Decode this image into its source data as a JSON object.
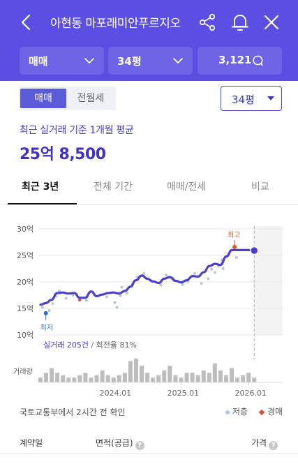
{
  "header": {
    "title": "아현동 마포래미안푸르지오",
    "filters": [
      {
        "label": "매매"
      },
      {
        "label": "34평"
      },
      {
        "label": "3,121"
      }
    ]
  },
  "controls": {
    "segment": [
      "매매",
      "전월세"
    ],
    "size_select": "34평"
  },
  "summary": {
    "label": "최근 실거래 기준 1개월 평균",
    "price": "25억 8,500"
  },
  "tabs": [
    "최근 3년",
    "전체 기간",
    "매매/전세",
    "비교"
  ],
  "chart_data": {
    "type": "line",
    "y_ticks": [
      "30억",
      "25억",
      "20억",
      "15억",
      "10억"
    ],
    "ylim": [
      10,
      30
    ],
    "x_ticks": [
      "2024.01",
      "2025.01",
      "2026.01"
    ],
    "x_tick_values": [
      2024.0,
      2025.0,
      2026.0
    ],
    "x_range": [
      2022.9,
      2026.5
    ],
    "series": [
      {
        "values": [
          [
            2022.92,
            15.7
          ],
          [
            2023.0,
            16.0
          ],
          [
            2023.08,
            16.6
          ],
          [
            2023.17,
            17.9
          ],
          [
            2023.25,
            18.0
          ],
          [
            2023.33,
            17.8
          ],
          [
            2023.42,
            17.9
          ],
          [
            2023.5,
            17.0
          ],
          [
            2023.58,
            17.0
          ],
          [
            2023.67,
            18.2
          ],
          [
            2023.75,
            17.3
          ],
          [
            2023.83,
            17.6
          ],
          [
            2023.92,
            17.9
          ],
          [
            2024.0,
            18.0
          ],
          [
            2024.08,
            17.8
          ],
          [
            2024.17,
            18.3
          ],
          [
            2024.25,
            19.1
          ],
          [
            2024.33,
            20.3
          ],
          [
            2024.42,
            21.2
          ],
          [
            2024.5,
            20.6
          ],
          [
            2024.58,
            20.1
          ],
          [
            2024.67,
            19.8
          ],
          [
            2024.75,
            20.6
          ],
          [
            2024.83,
            20.9
          ],
          [
            2024.92,
            20.2
          ],
          [
            2025.0,
            19.9
          ],
          [
            2025.08,
            20.3
          ],
          [
            2025.17,
            21.1
          ],
          [
            2025.25,
            21.0
          ],
          [
            2025.33,
            21.8
          ],
          [
            2025.42,
            23.0
          ],
          [
            2025.5,
            23.4
          ],
          [
            2025.58,
            23.2
          ],
          [
            2025.67,
            24.8
          ],
          [
            2025.75,
            26.0
          ],
          [
            2025.83,
            26.0
          ],
          [
            2025.92,
            26.0
          ],
          [
            2026.0,
            26.0
          ],
          [
            2026.08,
            25.9
          ]
        ]
      }
    ],
    "scatter": [
      [
        2022.95,
        15.2
      ],
      [
        2023.05,
        14.6
      ],
      [
        2023.1,
        15.9
      ],
      [
        2023.15,
        17.3
      ],
      [
        2023.2,
        18.3
      ],
      [
        2023.3,
        16.9
      ],
      [
        2023.4,
        17.5
      ],
      [
        2023.6,
        16.5
      ],
      [
        2023.72,
        17.6
      ],
      [
        2023.9,
        17.2
      ],
      [
        2024.02,
        16.1
      ],
      [
        2024.05,
        15.2
      ],
      [
        2024.1,
        17.4
      ],
      [
        2024.12,
        19.0
      ],
      [
        2024.2,
        17.9
      ],
      [
        2024.28,
        19.6
      ],
      [
        2024.35,
        20.9
      ],
      [
        2024.45,
        21.6
      ],
      [
        2024.55,
        20.3
      ],
      [
        2024.7,
        19.4
      ],
      [
        2024.78,
        21.3
      ],
      [
        2024.88,
        20.7
      ],
      [
        2025.02,
        19.5
      ],
      [
        2025.1,
        20.1
      ],
      [
        2025.2,
        21.6
      ],
      [
        2025.3,
        19.7
      ],
      [
        2025.4,
        20.6
      ],
      [
        2025.45,
        22.4
      ],
      [
        2025.5,
        21.8
      ],
      [
        2025.55,
        23.0
      ],
      [
        2025.6,
        24.1
      ],
      [
        2025.62,
        22.5
      ],
      [
        2025.7,
        25.3
      ],
      [
        2025.78,
        26.6
      ],
      [
        2025.82,
        24.6
      ]
    ],
    "auction": [
      [
        2023.5,
        16.6
      ]
    ],
    "annotations": {
      "low": {
        "label": "최저",
        "x": 2023.0,
        "y": 14.1
      },
      "high": {
        "label": "최고",
        "x": 2025.79,
        "y": 26.6
      }
    },
    "end_point": {
      "x": 2026.08,
      "y": 25.9
    },
    "info": {
      "count": "실거래 205건",
      "rate": "/ 회전율 81%"
    },
    "volume_label": "거래량",
    "volume": [
      2,
      4,
      6,
      4,
      3,
      2,
      2,
      3,
      4,
      2,
      3,
      5,
      3,
      2,
      3,
      4,
      9,
      10,
      7,
      4,
      2,
      3,
      5,
      7,
      3,
      2,
      4,
      4,
      3,
      5,
      4,
      8,
      5,
      3,
      6,
      2,
      3,
      4,
      2
    ]
  },
  "footer": {
    "source": "국토교통부에서 2시간 전 확인",
    "legend_low": "저층",
    "legend_auction": "경매"
  },
  "table": {
    "headers": [
      "계약일",
      "면적(공급)",
      "가격"
    ]
  },
  "colors": {
    "primary": "#5b4fe3",
    "accent": "#4640c6",
    "line": "#4a3fd0"
  }
}
